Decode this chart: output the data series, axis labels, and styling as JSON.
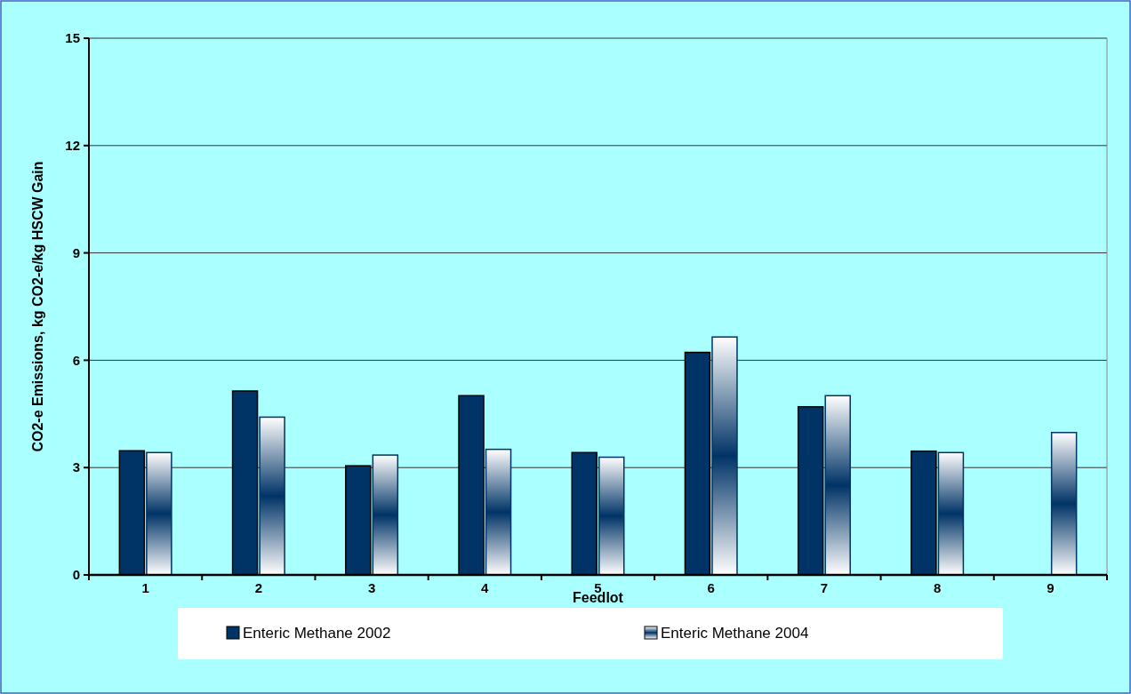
{
  "chart_data": {
    "type": "bar",
    "xlabel": "Feedlot",
    "ylabel": "CO2-e Emissions, kg CO2-e/kg HSCW Gain",
    "categories": [
      "1",
      "2",
      "3",
      "4",
      "5",
      "6",
      "7",
      "8",
      "9"
    ],
    "series": [
      {
        "name": "Enteric Methane 2002",
        "color": "#003366",
        "values": [
          3.47,
          5.14,
          3.05,
          5.01,
          3.42,
          6.22,
          4.7,
          3.46,
          null
        ]
      },
      {
        "name": "Enteric Methane 2004",
        "color": "#003366",
        "values": [
          3.42,
          4.41,
          3.35,
          3.51,
          3.29,
          6.65,
          5.01,
          3.42,
          3.98
        ]
      }
    ],
    "ylim": [
      0,
      15
    ],
    "yticks": [
      0,
      3,
      6,
      9,
      12,
      15
    ],
    "grid": "y",
    "legend": "bottom"
  }
}
